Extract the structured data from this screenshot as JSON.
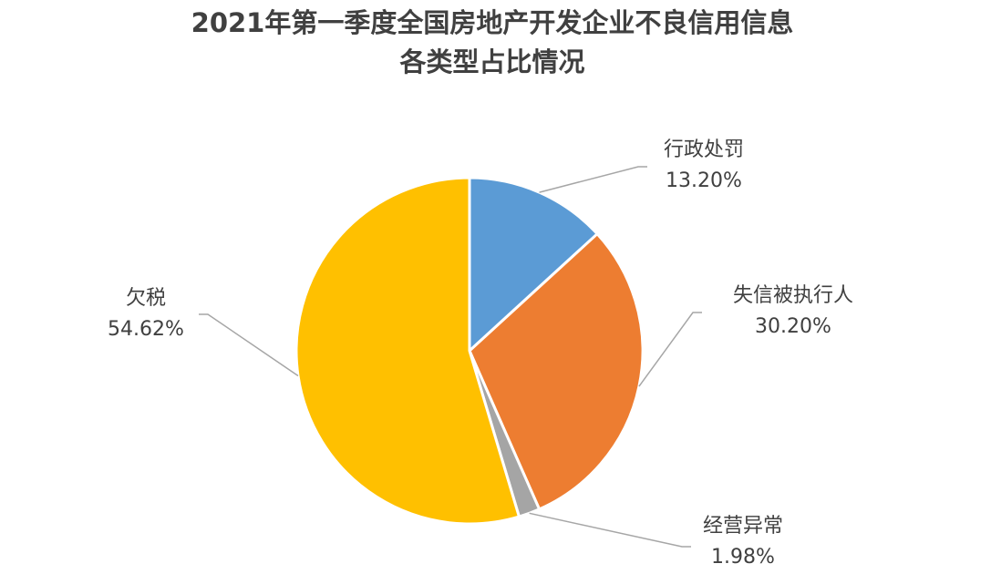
{
  "chart_data": {
    "type": "pie",
    "title": [
      "2021年第一季度全国房地产开发企业不良信用信息",
      "各类型占比情况"
    ],
    "categories": [
      "行政处罚",
      "失信被执行人",
      "经营异常",
      "欠税"
    ],
    "values": [
      13.2,
      30.2,
      1.98,
      54.62
    ],
    "value_labels": [
      "13.20%",
      "30.20%",
      "1.98%",
      "54.62%"
    ],
    "colors": [
      "#5b9bd5",
      "#ed7d31",
      "#a5a5a5",
      "#ffc000"
    ]
  }
}
